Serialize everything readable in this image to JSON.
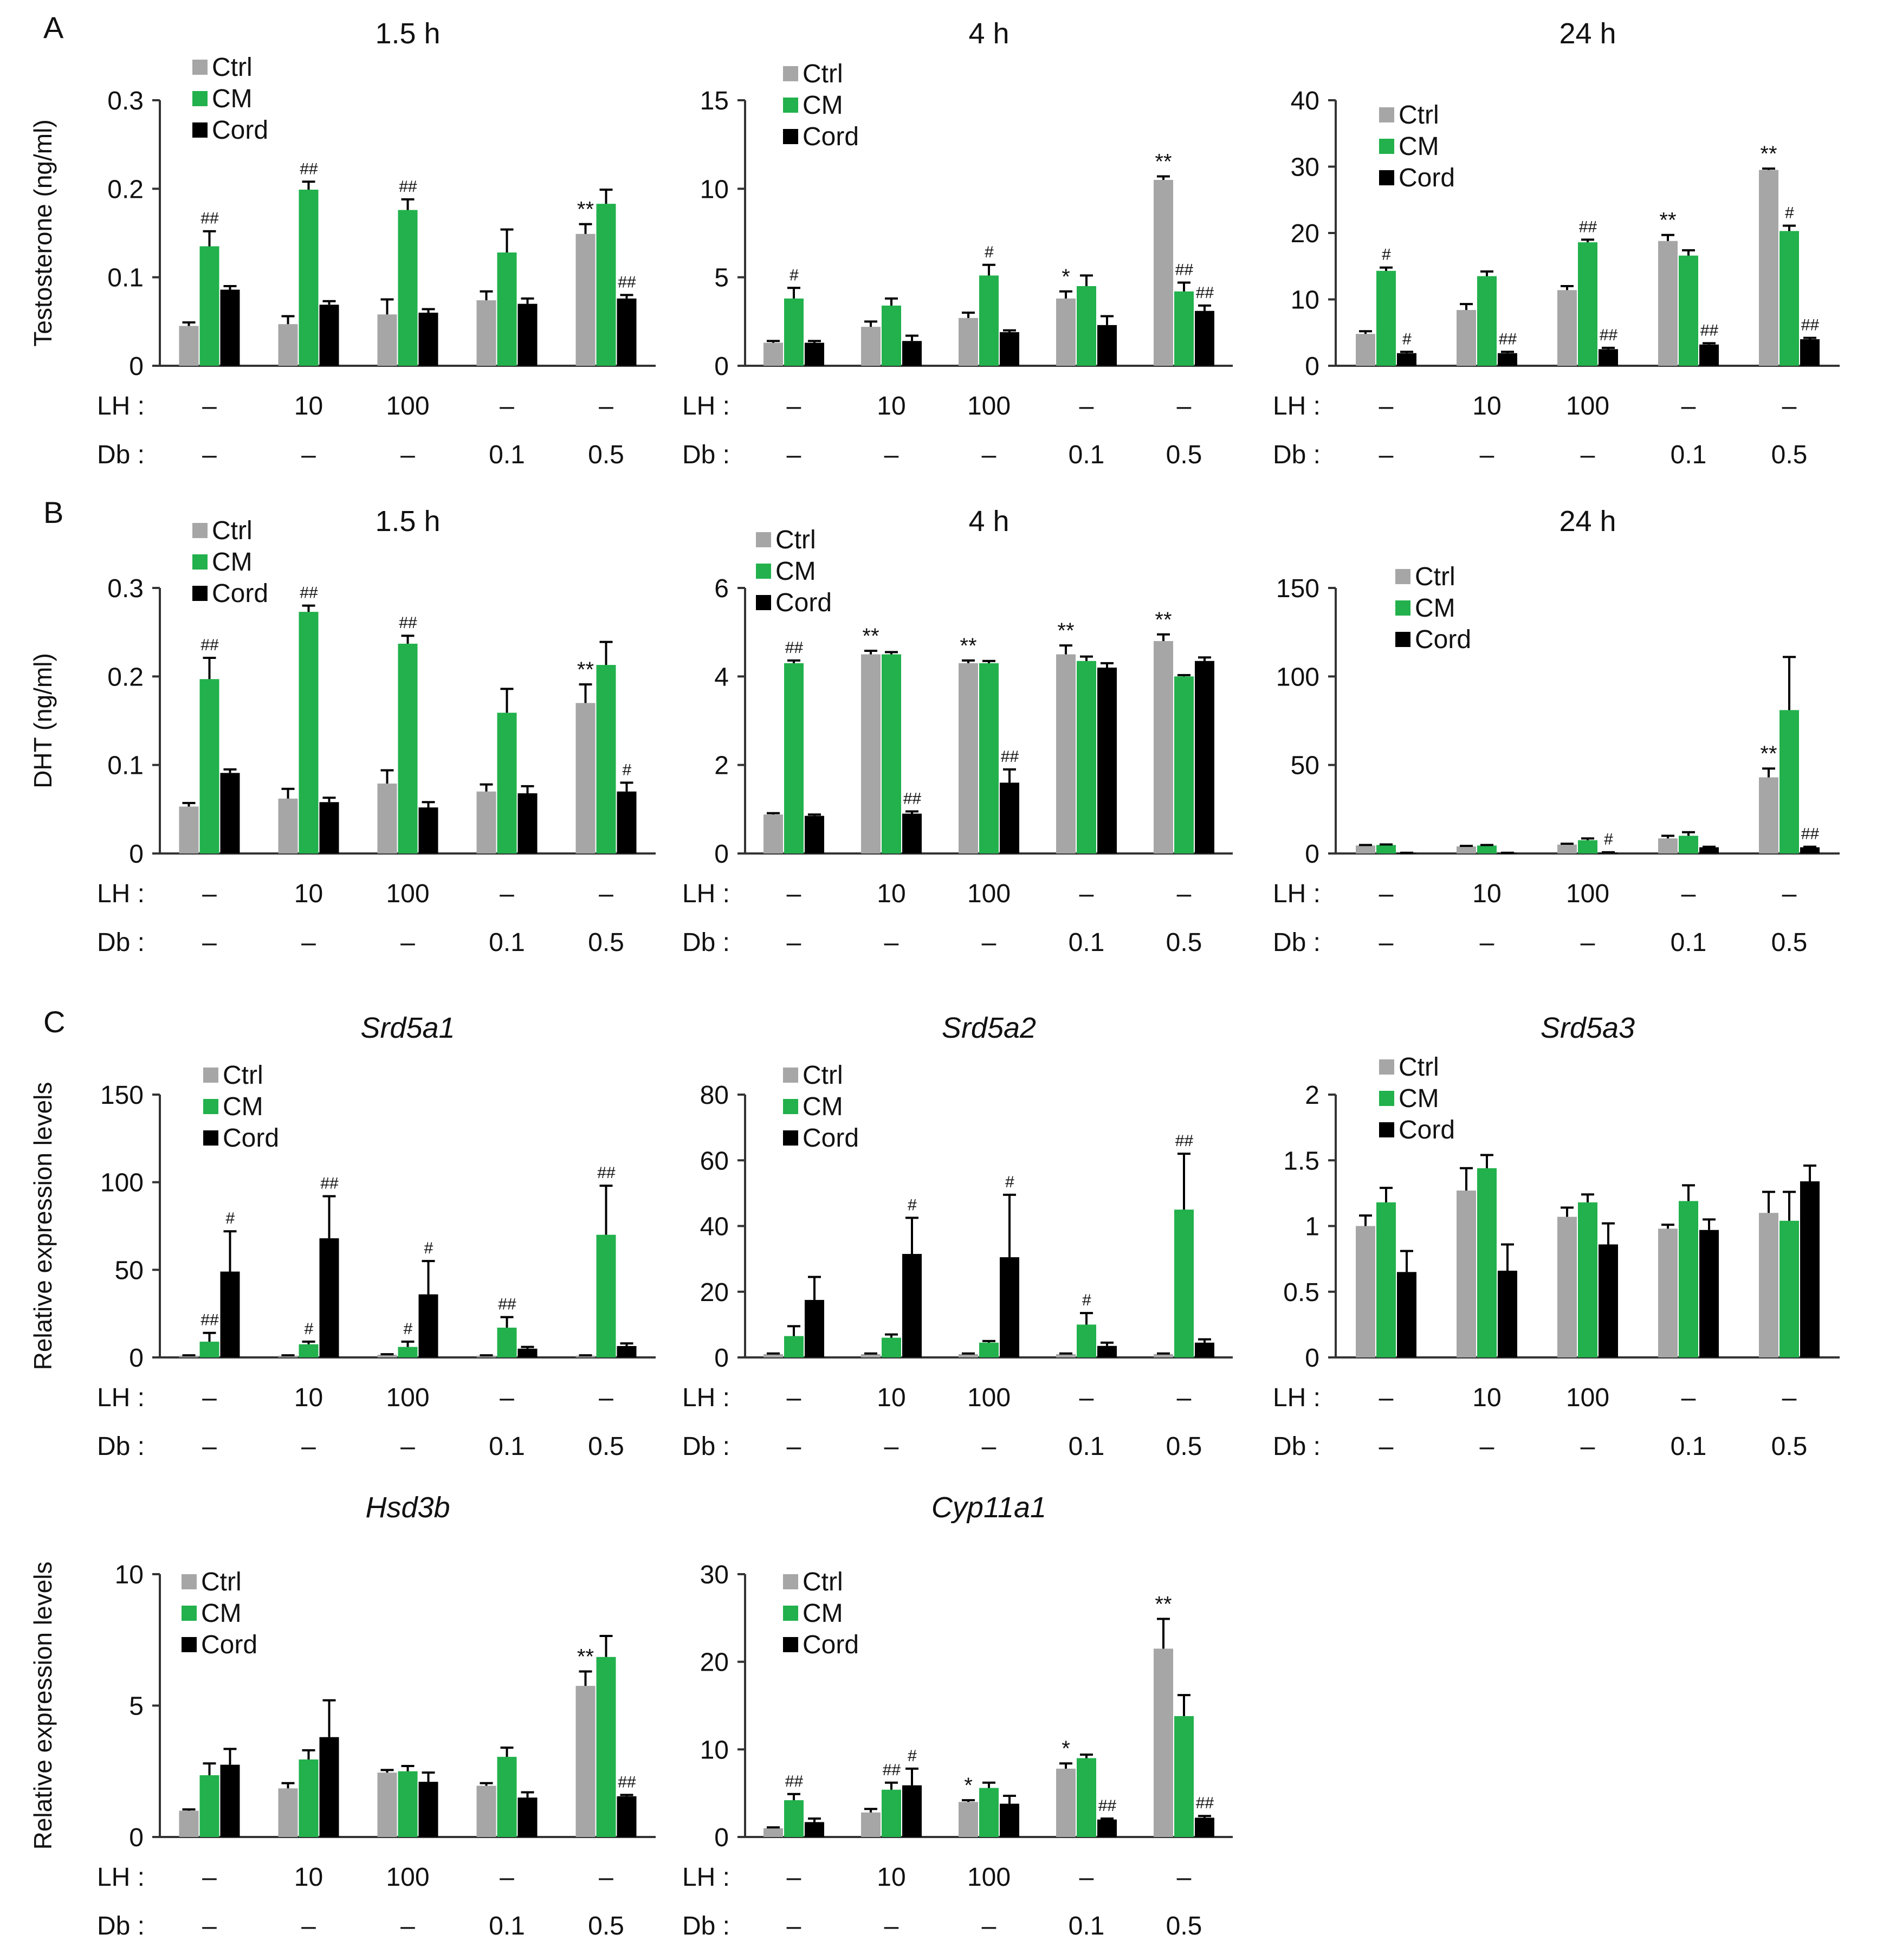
{
  "colors": {
    "Ctrl": "#a6a6a6",
    "CM": "#22b14c",
    "Cord": "#000000"
  },
  "panel_labels": [
    "A",
    "B",
    "C"
  ],
  "row_labels": {
    "lh": "LH :",
    "db": "Db :"
  },
  "conditions": {
    "lh": [
      "–",
      "10",
      "100",
      "–",
      "–"
    ],
    "db": [
      "–",
      "–",
      "–",
      "0.1",
      "0.5"
    ]
  },
  "legend": [
    "Ctrl",
    "CM",
    "Cord"
  ],
  "chart_data": [
    {
      "type": "bar",
      "panel": "A",
      "title": "1.5 h",
      "italic_title": false,
      "ylabel": "Testosterone (ng/ml)",
      "ylim": [
        0,
        0.3
      ],
      "yticks": [
        "0",
        "0.1",
        "0.2",
        "0.3"
      ],
      "series": [
        {
          "name": "Ctrl",
          "values": [
            0.045,
            0.047,
            0.058,
            0.074,
            0.149
          ],
          "errors": [
            0.004,
            0.009,
            0.017,
            0.01,
            0.011
          ]
        },
        {
          "name": "CM",
          "values": [
            0.135,
            0.199,
            0.176,
            0.128,
            0.183
          ],
          "errors": [
            0.017,
            0.009,
            0.012,
            0.026,
            0.016
          ]
        },
        {
          "name": "Cord",
          "values": [
            0.086,
            0.069,
            0.06,
            0.07,
            0.076
          ],
          "errors": [
            0.004,
            0.004,
            0.004,
            0.006,
            0.004
          ]
        }
      ],
      "annotations": [
        {
          "series": "CM",
          "index": 0,
          "text": "##"
        },
        {
          "series": "CM",
          "index": 1,
          "text": "##"
        },
        {
          "series": "CM",
          "index": 2,
          "text": "##"
        },
        {
          "series": "Ctrl",
          "index": 4,
          "text": "**"
        },
        {
          "series": "Cord",
          "index": 4,
          "text": "##"
        }
      ]
    },
    {
      "type": "bar",
      "panel": "A",
      "title": "4 h",
      "italic_title": false,
      "ylabel": "",
      "ylim": [
        0,
        15
      ],
      "yticks": [
        "0",
        "5",
        "10",
        "15"
      ],
      "series": [
        {
          "name": "Ctrl",
          "values": [
            1.3,
            2.2,
            2.7,
            3.8,
            10.5
          ],
          "errors": [
            0.1,
            0.3,
            0.3,
            0.4,
            0.2
          ]
        },
        {
          "name": "CM",
          "values": [
            3.8,
            3.4,
            5.1,
            4.5,
            4.2
          ],
          "errors": [
            0.6,
            0.4,
            0.6,
            0.6,
            0.5
          ]
        },
        {
          "name": "Cord",
          "values": [
            1.3,
            1.4,
            1.9,
            2.3,
            3.1
          ],
          "errors": [
            0.1,
            0.3,
            0.1,
            0.5,
            0.3
          ]
        }
      ],
      "annotations": [
        {
          "series": "CM",
          "index": 0,
          "text": "#"
        },
        {
          "series": "CM",
          "index": 2,
          "text": "#"
        },
        {
          "series": "Ctrl",
          "index": 3,
          "text": "*"
        },
        {
          "series": "Ctrl",
          "index": 4,
          "text": "**"
        },
        {
          "series": "CM",
          "index": 4,
          "text": "##"
        },
        {
          "series": "Cord",
          "index": 4,
          "text": "##"
        }
      ]
    },
    {
      "type": "bar",
      "panel": "A",
      "title": "24 h",
      "italic_title": false,
      "ylabel": "",
      "ylim": [
        0,
        40
      ],
      "yticks": [
        "0",
        "10",
        "20",
        "30",
        "40"
      ],
      "series": [
        {
          "name": "Ctrl",
          "values": [
            4.8,
            8.4,
            11.4,
            18.8,
            29.5
          ],
          "errors": [
            0.4,
            0.9,
            0.6,
            0.9,
            0.2
          ]
        },
        {
          "name": "CM",
          "values": [
            14.3,
            13.5,
            18.6,
            16.6,
            20.3
          ],
          "errors": [
            0.5,
            0.7,
            0.4,
            0.8,
            0.8
          ]
        },
        {
          "name": "Cord",
          "values": [
            1.9,
            1.9,
            2.5,
            3.2,
            4.0
          ],
          "errors": [
            0.2,
            0.2,
            0.2,
            0.2,
            0.2
          ]
        }
      ],
      "annotations": [
        {
          "series": "CM",
          "index": 0,
          "text": "#"
        },
        {
          "series": "Cord",
          "index": 0,
          "text": "#"
        },
        {
          "series": "Cord",
          "index": 1,
          "text": "##"
        },
        {
          "series": "CM",
          "index": 2,
          "text": "##"
        },
        {
          "series": "Cord",
          "index": 2,
          "text": "##"
        },
        {
          "series": "Ctrl",
          "index": 3,
          "text": "**"
        },
        {
          "series": "Cord",
          "index": 3,
          "text": "##"
        },
        {
          "series": "Ctrl",
          "index": 4,
          "text": "**"
        },
        {
          "series": "CM",
          "index": 4,
          "text": "#"
        },
        {
          "series": "Cord",
          "index": 4,
          "text": "##"
        }
      ]
    },
    {
      "type": "bar",
      "panel": "B",
      "title": "1.5 h",
      "italic_title": false,
      "ylabel": "DHT (ng/ml)",
      "ylim": [
        0,
        0.3
      ],
      "yticks": [
        "0",
        "0.1",
        "0.2",
        "0.3"
      ],
      "series": [
        {
          "name": "Ctrl",
          "values": [
            0.053,
            0.062,
            0.079,
            0.07,
            0.17
          ],
          "errors": [
            0.004,
            0.011,
            0.015,
            0.008,
            0.021
          ]
        },
        {
          "name": "CM",
          "values": [
            0.197,
            0.273,
            0.237,
            0.159,
            0.213
          ],
          "errors": [
            0.024,
            0.007,
            0.009,
            0.027,
            0.026
          ]
        },
        {
          "name": "Cord",
          "values": [
            0.091,
            0.058,
            0.052,
            0.068,
            0.07
          ],
          "errors": [
            0.004,
            0.005,
            0.006,
            0.008,
            0.01
          ]
        }
      ],
      "annotations": [
        {
          "series": "CM",
          "index": 0,
          "text": "##"
        },
        {
          "series": "CM",
          "index": 1,
          "text": "##"
        },
        {
          "series": "CM",
          "index": 2,
          "text": "##"
        },
        {
          "series": "Ctrl",
          "index": 4,
          "text": "**"
        },
        {
          "series": "Cord",
          "index": 4,
          "text": "#"
        }
      ]
    },
    {
      "type": "bar",
      "panel": "B",
      "title": "4 h",
      "italic_title": false,
      "ylabel": "",
      "ylim": [
        0,
        6
      ],
      "yticks": [
        "0",
        "2",
        "4",
        "6"
      ],
      "series": [
        {
          "name": "Ctrl",
          "values": [
            0.88,
            4.5,
            4.3,
            4.5,
            4.8
          ],
          "errors": [
            0.03,
            0.08,
            0.06,
            0.2,
            0.15
          ]
        },
        {
          "name": "CM",
          "values": [
            4.3,
            4.5,
            4.3,
            4.35,
            4.0
          ],
          "errors": [
            0.06,
            0.05,
            0.05,
            0.1,
            0.03
          ]
        },
        {
          "name": "Cord",
          "values": [
            0.85,
            0.9,
            1.6,
            4.2,
            4.35
          ],
          "errors": [
            0.03,
            0.05,
            0.3,
            0.1,
            0.08
          ]
        }
      ],
      "annotations": [
        {
          "series": "CM",
          "index": 0,
          "text": "##"
        },
        {
          "series": "Ctrl",
          "index": 1,
          "text": "**"
        },
        {
          "series": "Cord",
          "index": 1,
          "text": "##"
        },
        {
          "series": "Ctrl",
          "index": 2,
          "text": "**"
        },
        {
          "series": "Cord",
          "index": 2,
          "text": "##"
        },
        {
          "series": "Ctrl",
          "index": 3,
          "text": "**"
        },
        {
          "series": "Ctrl",
          "index": 4,
          "text": "**"
        }
      ]
    },
    {
      "type": "bar",
      "panel": "B",
      "title": "24 h",
      "italic_title": false,
      "ylabel": "",
      "ylim": [
        0,
        150
      ],
      "yticks": [
        "0",
        "50",
        "100",
        "150"
      ],
      "series": [
        {
          "name": "Ctrl",
          "values": [
            4.5,
            4.0,
            5.0,
            8.5,
            43
          ],
          "errors": [
            0.3,
            0.3,
            0.5,
            1.5,
            5
          ]
        },
        {
          "name": "CM",
          "values": [
            4.8,
            4.5,
            7.5,
            10.0,
            81
          ],
          "errors": [
            0.3,
            0.3,
            1.0,
            2.0,
            30
          ]
        },
        {
          "name": "Cord",
          "values": [
            0.3,
            0.3,
            0.5,
            3.5,
            3.5
          ],
          "errors": [
            0.1,
            0.1,
            0.2,
            0.3,
            0.3
          ]
        }
      ],
      "annotations": [
        {
          "series": "Cord",
          "index": 2,
          "text": "#"
        },
        {
          "series": "Ctrl",
          "index": 4,
          "text": "**"
        },
        {
          "series": "Cord",
          "index": 4,
          "text": "##"
        }
      ]
    },
    {
      "type": "bar",
      "panel": "C",
      "title": "Srd5a1",
      "italic_title": true,
      "ylabel": "Relative expression levels",
      "ylim": [
        0,
        150
      ],
      "yticks": [
        "0",
        "50",
        "100",
        "150"
      ],
      "series": [
        {
          "name": "Ctrl",
          "values": [
            1,
            1,
            1.5,
            1,
            1
          ],
          "errors": [
            0.2,
            0.2,
            0.3,
            0.2,
            0.2
          ]
        },
        {
          "name": "CM",
          "values": [
            9,
            7.5,
            6,
            17,
            70
          ],
          "errors": [
            5,
            1.5,
            3,
            6,
            28
          ]
        },
        {
          "name": "Cord",
          "values": [
            49,
            68,
            36,
            5,
            6.5
          ],
          "errors": [
            23,
            24,
            19,
            1,
            1.5
          ]
        }
      ],
      "annotations": [
        {
          "series": "CM",
          "index": 0,
          "text": "##"
        },
        {
          "series": "Cord",
          "index": 0,
          "text": "#"
        },
        {
          "series": "CM",
          "index": 1,
          "text": "#"
        },
        {
          "series": "Cord",
          "index": 1,
          "text": "##"
        },
        {
          "series": "CM",
          "index": 2,
          "text": "#"
        },
        {
          "series": "Cord",
          "index": 2,
          "text": "#"
        },
        {
          "series": "CM",
          "index": 3,
          "text": "##"
        },
        {
          "series": "CM",
          "index": 4,
          "text": "##"
        }
      ]
    },
    {
      "type": "bar",
      "panel": "C",
      "title": "Srd5a2",
      "italic_title": true,
      "ylabel": "",
      "ylim": [
        0,
        80
      ],
      "yticks": [
        "0",
        "20",
        "40",
        "60",
        "80"
      ],
      "series": [
        {
          "name": "Ctrl",
          "values": [
            1,
            1,
            1,
            1,
            1
          ],
          "errors": [
            0.2,
            0.2,
            0.2,
            0.2,
            0.2
          ]
        },
        {
          "name": "CM",
          "values": [
            6.5,
            6,
            4.5,
            10,
            45
          ],
          "errors": [
            3,
            1,
            0.5,
            3.5,
            17
          ]
        },
        {
          "name": "Cord",
          "values": [
            17.5,
            31.5,
            30.5,
            3.5,
            4.5
          ],
          "errors": [
            7,
            11,
            19,
            1,
            1
          ]
        }
      ],
      "annotations": [
        {
          "series": "Cord",
          "index": 1,
          "text": "#"
        },
        {
          "series": "Cord",
          "index": 2,
          "text": "#"
        },
        {
          "series": "CM",
          "index": 3,
          "text": "#"
        },
        {
          "series": "CM",
          "index": 4,
          "text": "##"
        }
      ]
    },
    {
      "type": "bar",
      "panel": "C",
      "title": "Srd5a3",
      "italic_title": true,
      "ylabel": "",
      "ylim": [
        0,
        2
      ],
      "yticks": [
        "0",
        "0.5",
        "1",
        "1.5",
        "2"
      ],
      "series": [
        {
          "name": "Ctrl",
          "values": [
            1.0,
            1.27,
            1.07,
            0.98,
            1.1
          ],
          "errors": [
            0.08,
            0.17,
            0.07,
            0.03,
            0.16
          ]
        },
        {
          "name": "CM",
          "values": [
            1.18,
            1.44,
            1.18,
            1.19,
            1.04
          ],
          "errors": [
            0.11,
            0.1,
            0.06,
            0.12,
            0.22
          ]
        },
        {
          "name": "Cord",
          "values": [
            0.65,
            0.66,
            0.86,
            0.97,
            1.34
          ],
          "errors": [
            0.16,
            0.2,
            0.16,
            0.08,
            0.12
          ]
        }
      ],
      "annotations": []
    },
    {
      "type": "bar",
      "panel": "C",
      "title": "Hsd3b",
      "italic_title": true,
      "ylabel": "Relative expression levels",
      "ylim": [
        0,
        10
      ],
      "yticks": [
        "0",
        "5",
        "10"
      ],
      "series": [
        {
          "name": "Ctrl",
          "values": [
            1.0,
            1.85,
            2.45,
            1.95,
            5.75
          ],
          "errors": [
            0.05,
            0.2,
            0.1,
            0.1,
            0.55
          ]
        },
        {
          "name": "CM",
          "values": [
            2.35,
            2.95,
            2.5,
            3.05,
            6.85
          ],
          "errors": [
            0.45,
            0.35,
            0.2,
            0.35,
            0.8
          ]
        },
        {
          "name": "Cord",
          "values": [
            2.75,
            3.8,
            2.1,
            1.5,
            1.55
          ],
          "errors": [
            0.6,
            1.4,
            0.35,
            0.2,
            0.05
          ]
        }
      ],
      "annotations": [
        {
          "series": "Ctrl",
          "index": 4,
          "text": "**"
        },
        {
          "series": "Cord",
          "index": 4,
          "text": "##"
        }
      ]
    },
    {
      "type": "bar",
      "panel": "C",
      "title": "Cyp11a1",
      "italic_title": true,
      "ylabel": "",
      "ylim": [
        0,
        30
      ],
      "yticks": [
        "0",
        "10",
        "20",
        "30"
      ],
      "series": [
        {
          "name": "Ctrl",
          "values": [
            1.0,
            2.8,
            4.0,
            7.8,
            21.5
          ],
          "errors": [
            0.1,
            0.4,
            0.2,
            0.6,
            3.4
          ]
        },
        {
          "name": "CM",
          "values": [
            4.2,
            5.4,
            5.6,
            9.0,
            13.8
          ],
          "errors": [
            0.7,
            0.8,
            0.6,
            0.4,
            2.4
          ]
        },
        {
          "name": "Cord",
          "values": [
            1.7,
            5.9,
            3.8,
            2.0,
            2.2
          ],
          "errors": [
            0.4,
            1.9,
            0.9,
            0.1,
            0.2
          ]
        }
      ],
      "annotations": [
        {
          "series": "CM",
          "index": 0,
          "text": "##"
        },
        {
          "series": "CM",
          "index": 1,
          "text": "##"
        },
        {
          "series": "Cord",
          "index": 1,
          "text": "#"
        },
        {
          "series": "Ctrl",
          "index": 2,
          "text": "*"
        },
        {
          "series": "Ctrl",
          "index": 3,
          "text": "*"
        },
        {
          "series": "Cord",
          "index": 3,
          "text": "##"
        },
        {
          "series": "Ctrl",
          "index": 4,
          "text": "**"
        },
        {
          "series": "Cord",
          "index": 4,
          "text": "##"
        }
      ]
    }
  ]
}
